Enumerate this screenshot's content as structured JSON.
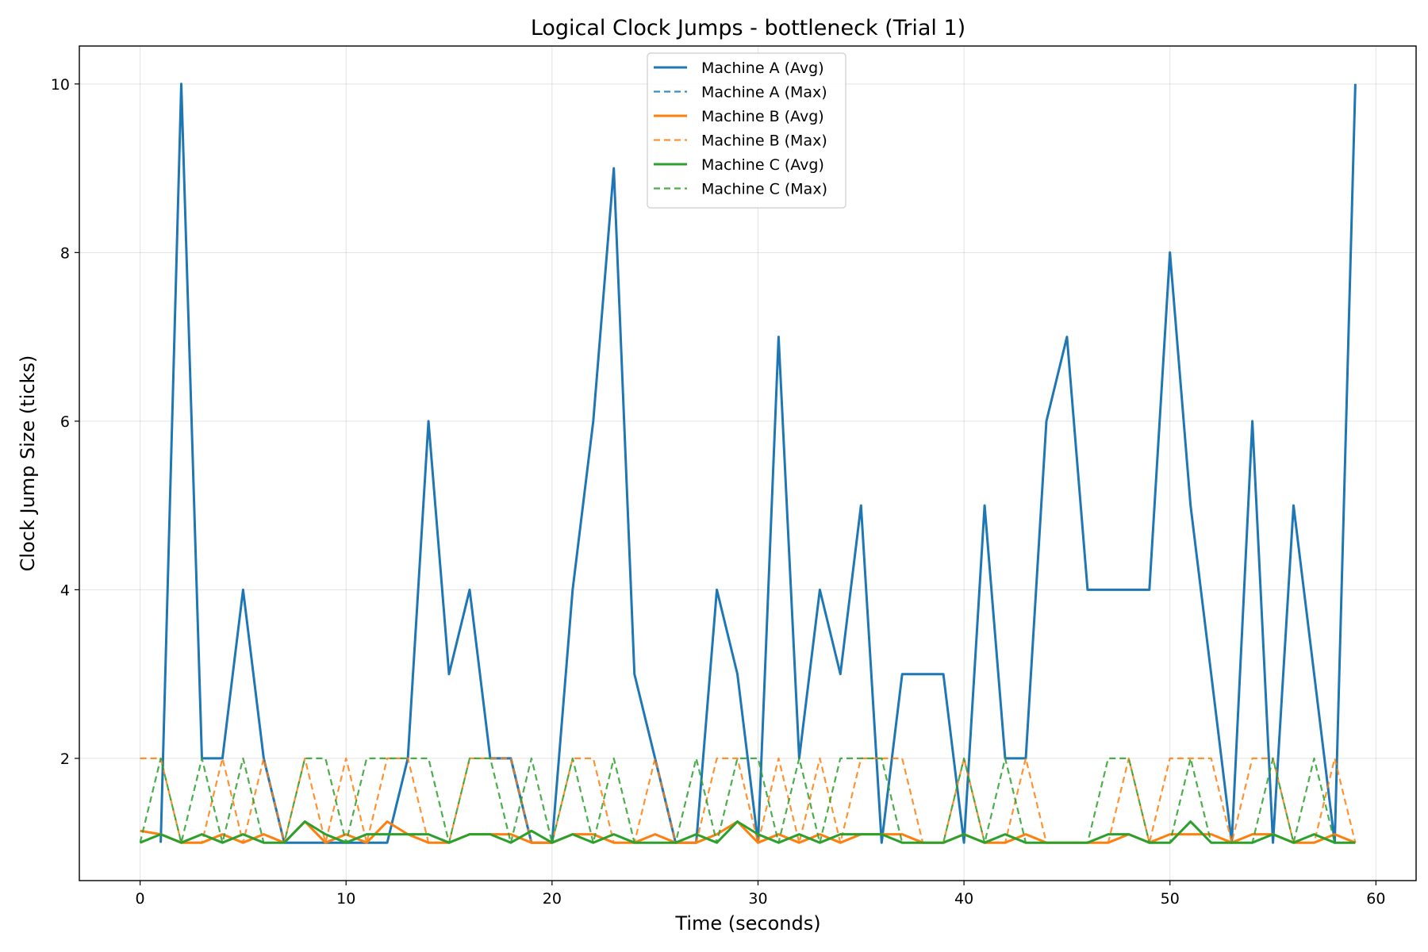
{
  "chart_data": {
    "type": "line",
    "title": "Logical Clock Jumps - bottleneck (Trial 1)",
    "xlabel": "Time (seconds)",
    "ylabel": "Clock Jump Size (ticks)",
    "xlim": [
      -2.95,
      61.95
    ],
    "ylim": [
      0.55,
      10.45
    ],
    "xticks": [
      0,
      10,
      20,
      30,
      40,
      50,
      60
    ],
    "yticks": [
      2,
      4,
      6,
      8,
      10
    ],
    "grid": true,
    "legend_position": "top-center",
    "x": [
      0,
      1,
      2,
      3,
      4,
      5,
      6,
      7,
      8,
      9,
      10,
      11,
      12,
      13,
      14,
      15,
      16,
      17,
      18,
      19,
      20,
      21,
      22,
      23,
      24,
      25,
      26,
      27,
      28,
      29,
      30,
      31,
      32,
      33,
      34,
      35,
      36,
      37,
      38,
      39,
      40,
      41,
      42,
      43,
      44,
      45,
      46,
      47,
      48,
      49,
      50,
      51,
      52,
      53,
      54,
      55,
      56,
      57,
      58,
      59
    ],
    "series": [
      {
        "name": "Machine A (Avg)",
        "color": "#1f77b4",
        "dashed": false,
        "width": 3,
        "x": [
          1,
          1,
          2,
          3,
          4,
          5,
          6,
          7,
          8,
          9,
          10,
          11,
          12,
          13,
          14,
          15,
          16,
          17,
          18,
          19,
          20,
          21,
          22,
          23,
          24,
          25,
          26,
          27,
          28,
          29,
          30,
          31,
          32,
          33,
          34,
          35,
          36,
          37,
          38,
          39,
          40,
          41,
          42,
          43,
          44,
          45,
          46,
          47,
          48,
          49,
          50,
          51,
          52,
          53,
          54,
          55,
          56,
          57,
          58,
          59
        ],
        "values": [
          1,
          1,
          10,
          2,
          2,
          4,
          2,
          1,
          1,
          1,
          1,
          1,
          1,
          2,
          6,
          3,
          4,
          2,
          2,
          1,
          1,
          4,
          6,
          9,
          3,
          2,
          1,
          1,
          4,
          3,
          1,
          7,
          2,
          4,
          3,
          5,
          1,
          3,
          3,
          3,
          1,
          5,
          2,
          2,
          6,
          7,
          4,
          4,
          4,
          4,
          8,
          5,
          3,
          1,
          6,
          1,
          5,
          3,
          1,
          10
        ]
      },
      {
        "name": "Machine A (Max)",
        "color": "#1f77b4",
        "dashed": true,
        "width": 2.2,
        "x": [
          1,
          1,
          2,
          3,
          4,
          5,
          6,
          7,
          8,
          9,
          10,
          11,
          12,
          13,
          14,
          15,
          16,
          17,
          18,
          19,
          20,
          21,
          22,
          23,
          24,
          25,
          26,
          27,
          28,
          29,
          30,
          31,
          32,
          33,
          34,
          35,
          36,
          37,
          38,
          39,
          40,
          41,
          42,
          43,
          44,
          45,
          46,
          47,
          48,
          49,
          50,
          51,
          52,
          53,
          54,
          55,
          56,
          57,
          58,
          59
        ],
        "values": [
          1,
          1,
          10,
          2,
          2,
          4,
          2,
          1,
          1,
          1,
          1,
          1,
          1,
          2,
          6,
          3,
          4,
          2,
          2,
          1,
          1,
          4,
          6,
          9,
          3,
          2,
          1,
          1,
          4,
          3,
          1,
          7,
          2,
          4,
          3,
          5,
          1,
          3,
          3,
          3,
          1,
          5,
          2,
          2,
          6,
          7,
          4,
          4,
          4,
          4,
          8,
          5,
          3,
          1,
          6,
          1,
          5,
          3,
          1,
          10
        ]
      },
      {
        "name": "Machine B (Avg)",
        "color": "#ff7f0e",
        "dashed": false,
        "width": 3,
        "values": [
          1.14,
          1.1,
          1,
          1,
          1.1,
          1,
          1.1,
          1,
          1.25,
          1,
          1.1,
          1,
          1.25,
          1.1,
          1,
          1,
          1.1,
          1.1,
          1.1,
          1,
          1,
          1.1,
          1.1,
          1,
          1,
          1.1,
          1,
          1,
          1.1,
          1.25,
          1,
          1.1,
          1,
          1.1,
          1,
          1.1,
          1.1,
          1.1,
          1,
          1,
          1.1,
          1,
          1,
          1.1,
          1,
          1,
          1,
          1,
          1.1,
          1,
          1.1,
          1.1,
          1.1,
          1,
          1.1,
          1.1,
          1,
          1,
          1.1,
          1
        ]
      },
      {
        "name": "Machine B (Max)",
        "color": "#ff7f0e",
        "dashed": true,
        "width": 2.2,
        "values": [
          2,
          2,
          1,
          1,
          2,
          1,
          2,
          1,
          2,
          1,
          2,
          1,
          2,
          2,
          1,
          1,
          2,
          2,
          2,
          1,
          1,
          2,
          2,
          1,
          1,
          2,
          1,
          1,
          2,
          2,
          1,
          2,
          1,
          2,
          1,
          2,
          2,
          2,
          1,
          1,
          2,
          1,
          1,
          2,
          1,
          1,
          1,
          1,
          2,
          1,
          2,
          2,
          2,
          1,
          2,
          2,
          1,
          1,
          2,
          1
        ]
      },
      {
        "name": "Machine C (Avg)",
        "color": "#2ca02c",
        "dashed": false,
        "width": 3,
        "values": [
          1,
          1.1,
          1,
          1.1,
          1,
          1.1,
          1,
          1,
          1.25,
          1.1,
          1,
          1.1,
          1.1,
          1.1,
          1.1,
          1,
          1.1,
          1.1,
          1,
          1.14,
          1,
          1.1,
          1,
          1.1,
          1,
          1,
          1,
          1.1,
          1,
          1.25,
          1.1,
          1,
          1.1,
          1,
          1.1,
          1.1,
          1.1,
          1,
          1,
          1,
          1.1,
          1,
          1.1,
          1,
          1,
          1,
          1,
          1.1,
          1.1,
          1,
          1,
          1.25,
          1,
          1,
          1,
          1.1,
          1,
          1.1,
          1,
          1
        ]
      },
      {
        "name": "Machine C (Max)",
        "color": "#2ca02c",
        "dashed": true,
        "width": 2.2,
        "values": [
          1,
          2,
          1,
          2,
          1,
          2,
          1,
          1,
          2,
          2,
          1,
          2,
          2,
          2,
          2,
          1,
          2,
          2,
          1,
          2,
          1,
          2,
          1,
          2,
          1,
          1,
          1,
          2,
          1,
          2,
          2,
          1,
          2,
          1,
          2,
          2,
          2,
          1,
          1,
          1,
          2,
          1,
          2,
          1,
          1,
          1,
          1,
          2,
          2,
          1,
          1,
          2,
          1,
          1,
          1,
          2,
          1,
          2,
          1,
          1
        ]
      }
    ]
  }
}
